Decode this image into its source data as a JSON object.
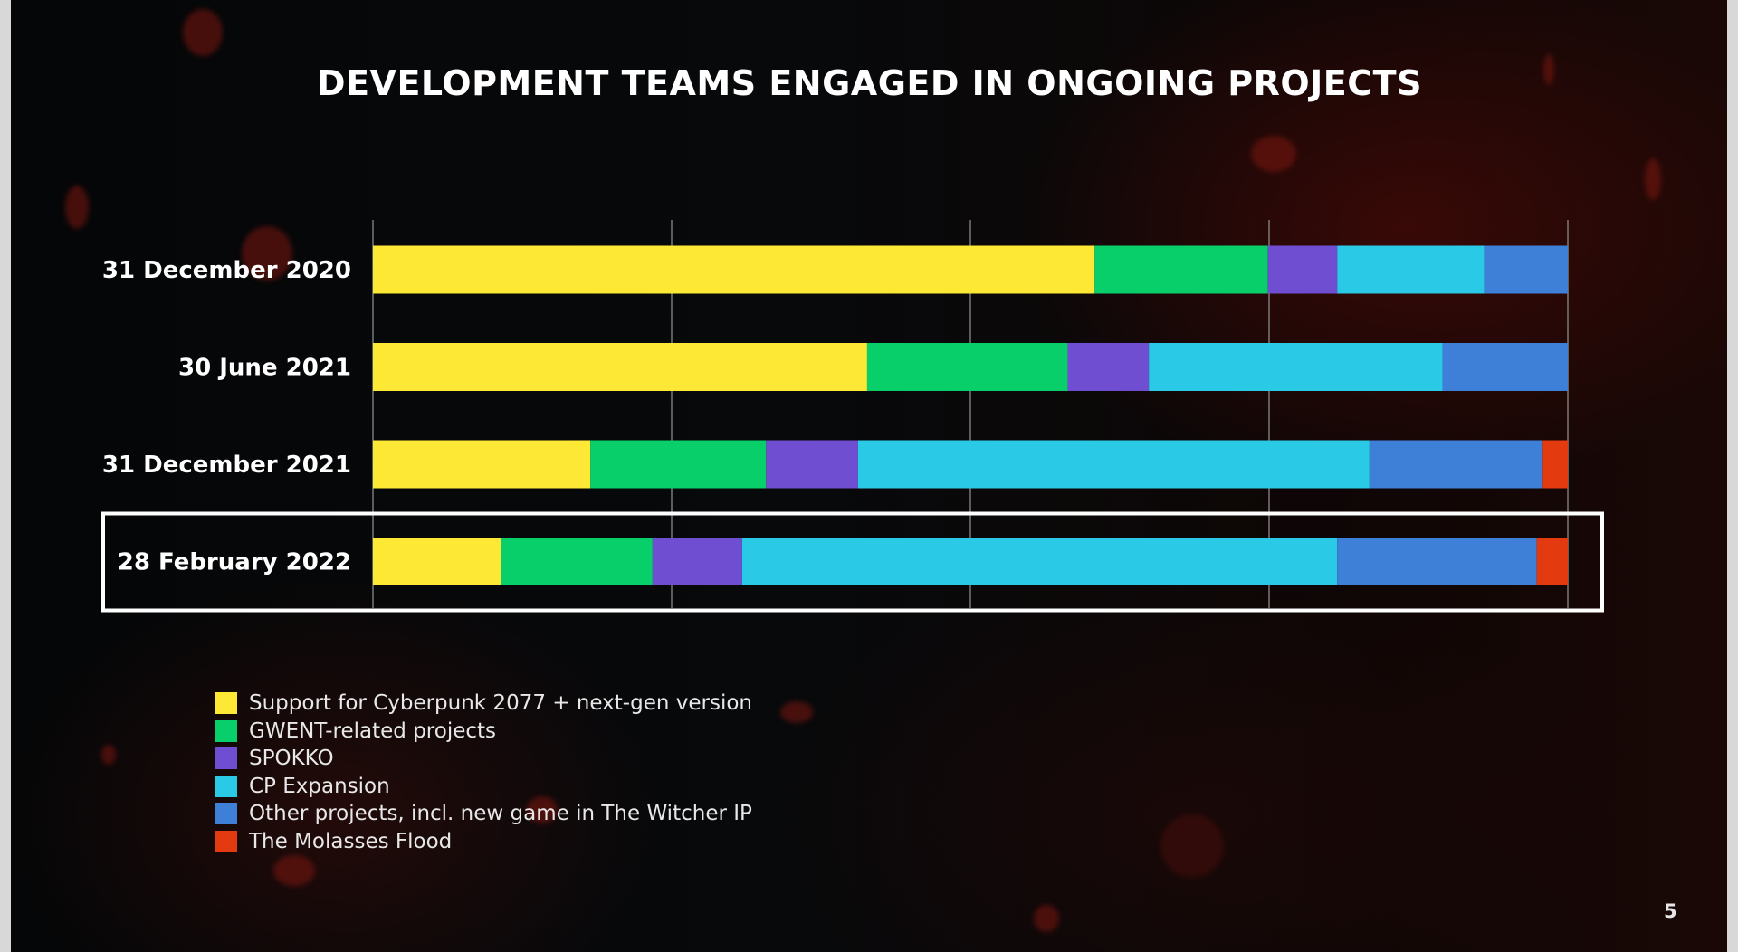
{
  "page": {
    "title": "DEVELOPMENT TEAMS ENGAGED IN ONGOING PROJECTS",
    "page_number": "5"
  },
  "chart_data": {
    "type": "bar",
    "orientation": "horizontal",
    "stacked": true,
    "normalized": true,
    "title": "DEVELOPMENT TEAMS ENGAGED IN ONGOING PROJECTS",
    "xlabel": "",
    "ylabel": "",
    "xlim": [
      0,
      100
    ],
    "grid": "vertical",
    "gridlines_at": [
      0,
      25,
      50,
      75,
      100
    ],
    "legend_placement": "bottom-left",
    "highlighted_category": "28 February 2022",
    "categories": [
      "31 December 2020",
      "30 June 2021",
      "31 December 2021",
      "28 February 2022"
    ],
    "series": [
      {
        "name": "Support for Cyberpunk 2077 + next-gen version",
        "color": "#fde935",
        "values": [
          60.4,
          41.4,
          18.2,
          10.7
        ]
      },
      {
        "name": "GWENT-related projects",
        "color": "#09cf6a",
        "values": [
          14.5,
          16.8,
          14.7,
          12.7
        ]
      },
      {
        "name": "SPOKKO",
        "color": "#6f4ed1",
        "values": [
          5.8,
          6.8,
          7.7,
          7.5
        ]
      },
      {
        "name": "CP Expansion",
        "color": "#2ac9e6",
        "values": [
          12.3,
          24.6,
          42.8,
          49.8
        ]
      },
      {
        "name": "Other projects, incl. new game in The Witcher IP",
        "color": "#3e7fd8",
        "values": [
          7.0,
          10.5,
          14.5,
          16.7
        ]
      },
      {
        "name": "The Molasses Flood",
        "color": "#e33a0f",
        "values": [
          0,
          0,
          2.1,
          2.6
        ]
      }
    ]
  }
}
